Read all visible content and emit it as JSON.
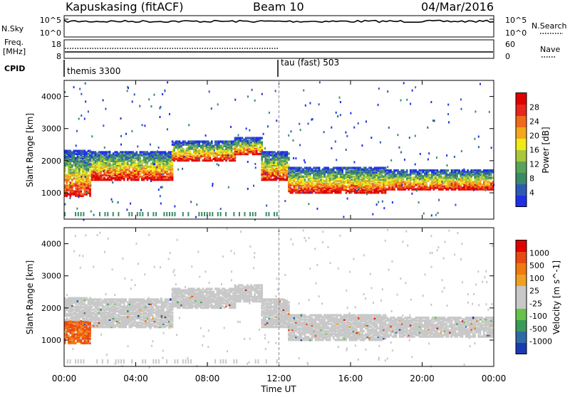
{
  "header": {
    "station": "Kapuskasing (fitACF)",
    "beam": "Beam 10",
    "date": "04/Mar/2016"
  },
  "nsky_panel": {
    "left_label": "N.Sky",
    "right_label": "N.Search",
    "left_ticks": [
      "10^5",
      "10^0"
    ],
    "right_ticks": [
      "10^5",
      "10^0"
    ]
  },
  "freq_panel": {
    "left_label_line1": "Freq.",
    "left_label_line2": "[MHz]",
    "left_ticks": [
      "18",
      "8"
    ],
    "right_label": "Nave",
    "right_ticks": [
      "60",
      "0"
    ]
  },
  "cpid": {
    "label": "CPID",
    "modes": [
      {
        "name": "themis 3300",
        "start_hour": 0
      },
      {
        "name": "tau (fast) 503",
        "start_hour": 12
      }
    ]
  },
  "time_axis": {
    "label": "Time UT",
    "ticks": [
      "00:00",
      "04:00",
      "08:00",
      "12:00",
      "16:00",
      "20:00",
      "00:00"
    ],
    "range_hours": [
      0,
      24
    ]
  },
  "chart_data": [
    {
      "type": "heatmap",
      "parameter": "Power",
      "ylabel": "Slant Range [km]",
      "yticks": [
        "1000",
        "2000",
        "3000",
        "4000"
      ],
      "ylim": [
        180,
        4500
      ],
      "colorbar_label": "Power [dB]",
      "colorbar_ticks": [
        "4",
        "8",
        "12",
        "16",
        "20",
        "24",
        "28"
      ],
      "colorbar_colors": [
        "#1f2fe8",
        "#2f5ab4",
        "#3a8a66",
        "#5aa35c",
        "#a8c83a",
        "#f0ea18",
        "#f2a81a",
        "#f06a1a",
        "#e8261a",
        "#e00000"
      ],
      "bands": [
        {
          "start_hour": 0.0,
          "end_hour": 1.5,
          "lower_km": 900,
          "upper_km": 2300
        },
        {
          "start_hour": 1.5,
          "end_hour": 6.0,
          "lower_km": 1400,
          "upper_km": 2300
        },
        {
          "start_hour": 6.0,
          "end_hour": 9.5,
          "lower_km": 2000,
          "upper_km": 2600
        },
        {
          "start_hour": 9.5,
          "end_hour": 11.0,
          "lower_km": 2200,
          "upper_km": 2700
        },
        {
          "start_hour": 11.0,
          "end_hour": 12.5,
          "lower_km": 1400,
          "upper_km": 2300
        },
        {
          "start_hour": 12.5,
          "end_hour": 18.0,
          "lower_km": 1000,
          "upper_km": 1800
        },
        {
          "start_hour": 18.0,
          "end_hour": 24.0,
          "lower_km": 1100,
          "upper_km": 1700
        }
      ]
    },
    {
      "type": "heatmap",
      "parameter": "Velocity",
      "ylabel": "Slant Range [km]",
      "yticks": [
        "1000",
        "2000",
        "3000",
        "4000"
      ],
      "ylim": [
        180,
        4500
      ],
      "colorbar_label": "Velocity [m s^-1]",
      "colorbar_ticks": [
        "1000",
        "500",
        "100",
        "25",
        "-25",
        "-100",
        "-500",
        "-1000"
      ],
      "colorbar_colors": [
        "#1a3ab4",
        "#2f6aa8",
        "#3a9a5a",
        "#66c24a",
        "#c8c8c8",
        "#c8c8c8",
        "#f0a020",
        "#f07a10",
        "#e84a10",
        "#e00000"
      ],
      "bands": [
        {
          "start_hour": 0.0,
          "end_hour": 1.5,
          "lower_km": 900,
          "upper_km": 2300
        },
        {
          "start_hour": 1.5,
          "end_hour": 6.0,
          "lower_km": 1400,
          "upper_km": 2300
        },
        {
          "start_hour": 6.0,
          "end_hour": 9.5,
          "lower_km": 2000,
          "upper_km": 2600
        },
        {
          "start_hour": 9.5,
          "end_hour": 11.0,
          "lower_km": 2200,
          "upper_km": 2700
        },
        {
          "start_hour": 11.0,
          "end_hour": 12.5,
          "lower_km": 1400,
          "upper_km": 2300
        },
        {
          "start_hour": 12.5,
          "end_hour": 18.0,
          "lower_km": 1000,
          "upper_km": 1800
        },
        {
          "start_hour": 18.0,
          "end_hour": 24.0,
          "lower_km": 1100,
          "upper_km": 1700
        }
      ]
    }
  ]
}
